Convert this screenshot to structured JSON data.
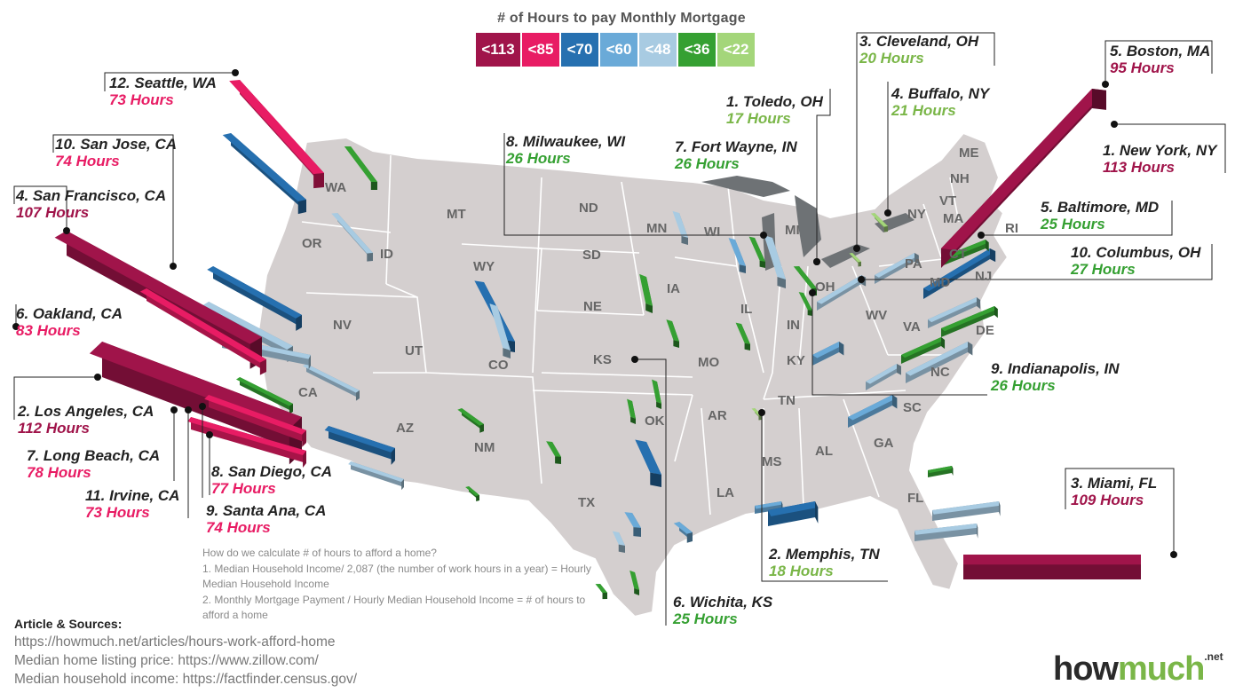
{
  "legend": {
    "title": "# of Hours to pay Monthly Mortgage",
    "items": [
      {
        "label": "<113",
        "color": "#a0144a"
      },
      {
        "label": "<85",
        "color": "#e81c64"
      },
      {
        "label": "<70",
        "color": "#2670b0"
      },
      {
        "label": "<60",
        "color": "#6aaad8"
      },
      {
        "label": "<48",
        "color": "#a8cbe2"
      },
      {
        "label": "<36",
        "color": "#35a032"
      },
      {
        "label": "<22",
        "color": "#a4d67a"
      }
    ]
  },
  "west_labels": [
    {
      "city": "12. Seattle, WA",
      "hours": "73 Hours",
      "color": "#e81c64"
    },
    {
      "city": "10. San Jose, CA",
      "hours": "74 Hours",
      "color": "#e81c64"
    },
    {
      "city": "4. San Francisco, CA",
      "hours": "107 Hours",
      "color": "#a0144a"
    },
    {
      "city": "6. Oakland, CA",
      "hours": "83 Hours",
      "color": "#e81c64"
    },
    {
      "city": "2. Los Angeles, CA",
      "hours": "112 Hours",
      "color": "#a0144a"
    },
    {
      "city": "7. Long Beach, CA",
      "hours": "78 Hours",
      "color": "#e81c64"
    },
    {
      "city": "11. Irvine, CA",
      "hours": "73 Hours",
      "color": "#e81c64"
    },
    {
      "city": "8. San Diego, CA",
      "hours": "77 Hours",
      "color": "#e81c64"
    },
    {
      "city": "9. Santa Ana, CA",
      "hours": "74 Hours",
      "color": "#e81c64"
    }
  ],
  "east_labels": [
    {
      "city": "5. Boston, MA",
      "hours": "95 Hours",
      "color": "#a0144a"
    },
    {
      "city": "1. New York, NY",
      "hours": "113 Hours",
      "color": "#a0144a"
    },
    {
      "city": "3. Miami, FL",
      "hours": "109 Hours",
      "color": "#a0144a"
    }
  ],
  "affordable_labels": [
    {
      "city": "3. Cleveland, OH",
      "hours": "20 Hours",
      "color": "#7ab648"
    },
    {
      "city": "1. Toledo, OH",
      "hours": "17 Hours",
      "color": "#7ab648"
    },
    {
      "city": "4. Buffalo, NY",
      "hours": "21 Hours",
      "color": "#7ab648"
    },
    {
      "city": "8. Milwaukee, WI",
      "hours": "26 Hours",
      "color": "#35a032"
    },
    {
      "city": "7. Fort Wayne, IN",
      "hours": "26 Hours",
      "color": "#35a032"
    },
    {
      "city": "5. Baltimore, MD",
      "hours": "25 Hours",
      "color": "#35a032"
    },
    {
      "city": "10. Columbus, OH",
      "hours": "27 Hours",
      "color": "#35a032"
    },
    {
      "city": "9. Indianapolis, IN",
      "hours": "26 Hours",
      "color": "#35a032"
    },
    {
      "city": "2. Memphis, TN",
      "hours": "18 Hours",
      "color": "#7ab648"
    },
    {
      "city": "6. Wichita, KS",
      "hours": "25 Hours",
      "color": "#35a032"
    }
  ],
  "states": [
    "WA",
    "OR",
    "MT",
    "ID",
    "WY",
    "ND",
    "SD",
    "NE",
    "MN",
    "WI",
    "MI",
    "NV",
    "UT",
    "CO",
    "CA",
    "AZ",
    "NM",
    "KS",
    "OK",
    "TX",
    "MO",
    "IA",
    "IL",
    "IN",
    "OH",
    "KY",
    "TN",
    "AR",
    "LA",
    "MS",
    "AL",
    "GA",
    "FL",
    "SC",
    "NC",
    "VA",
    "WV",
    "PA",
    "NY",
    "ME",
    "NH",
    "VT",
    "MA",
    "RI",
    "CT",
    "NJ",
    "DE",
    "MD"
  ],
  "methodology": {
    "question": "How do we calculate # of hours to afford a home?",
    "step1": "1. Median Household Income/ 2,087 (the number of work hours in a year) = Hourly Median Household Income",
    "step2": "2. Monthly Mortgage Payment / Hourly Median Household Income = # of hours to afford a home"
  },
  "sources": {
    "title": "Article & Sources:",
    "lines": [
      "https://howmuch.net/articles/hours-work-afford-home",
      "Median home listing price: https://www.zillow.com/",
      "Median household income: https://factfinder.census.gov/"
    ]
  },
  "brand": {
    "part1": "how",
    "part2": "much",
    "suffix": ".net"
  },
  "colors": {
    "map_fill": "#d4cfcf",
    "map_border": "#ffffff",
    "leader": "#222222",
    "lake": "#6e7275"
  }
}
